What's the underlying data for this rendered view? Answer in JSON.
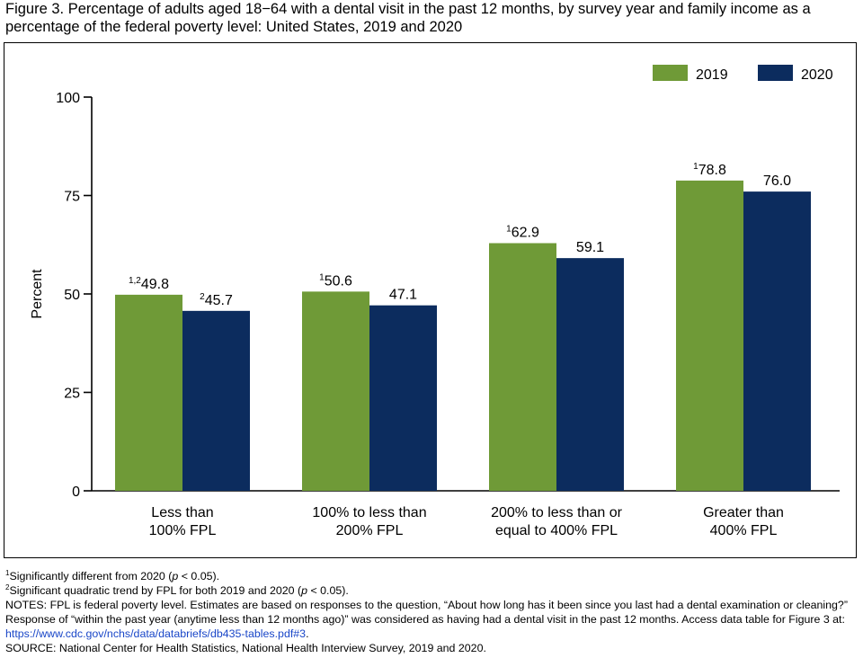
{
  "title": "Figure 3. Percentage of adults aged 18−64 with a dental visit in the past 12 months, by survey year and family income as a percentage of the federal poverty level: United States, 2019 and 2020",
  "chart_data": {
    "type": "bar",
    "categories": [
      [
        "Less than",
        "100% FPL"
      ],
      [
        "100% to less than",
        "200% FPL"
      ],
      [
        "200% to less than or",
        "equal to 400% FPL"
      ],
      [
        "Greater than",
        "400% FPL"
      ]
    ],
    "series": [
      {
        "name": "2019",
        "color": "#6f9a37",
        "values": [
          49.8,
          50.6,
          62.9,
          78.8
        ],
        "labels": [
          "49.8",
          "50.6",
          "62.9",
          "78.8"
        ],
        "footnote_marks": [
          "1,2",
          "1",
          "1",
          "1"
        ]
      },
      {
        "name": "2020",
        "color": "#0c2c5e",
        "values": [
          45.7,
          47.1,
          59.1,
          76.0
        ],
        "labels": [
          "45.7",
          "47.1",
          "59.1",
          "76.0"
        ],
        "footnote_marks": [
          "2",
          "",
          "",
          ""
        ]
      }
    ],
    "ylabel": "Percent",
    "ylim": [
      0,
      100
    ],
    "yticks": [
      0,
      25,
      50,
      75,
      100
    ],
    "legend": "top-right",
    "grid": false
  },
  "notes": {
    "fn1_mark": "1",
    "fn1_a": "Significantly different from 2020 (",
    "fn1_p": "p",
    "fn1_b": " < 0.05).",
    "fn2_mark": "2",
    "fn2_a": "Significant quadratic trend by FPL for both 2019 and 2020 (",
    "fn2_p": "p",
    "fn2_b": " < 0.05).",
    "notes_text": "NOTES: FPL is federal poverty level. Estimates are based on responses to the question, “About how long has it been since you last had a dental examination or cleaning?” Response of “within the past year (anytime less than 12 months ago)” was considered as having had a dental visit in the past 12 months. Access data table for Figure 3 at: ",
    "notes_link": "https://www.cdc.gov/nchs/data/databriefs/db435-tables.pdf#3",
    "notes_end": ".",
    "source": "SOURCE: National Center for Health Statistics, National Health Interview Survey, 2019 and 2020."
  }
}
